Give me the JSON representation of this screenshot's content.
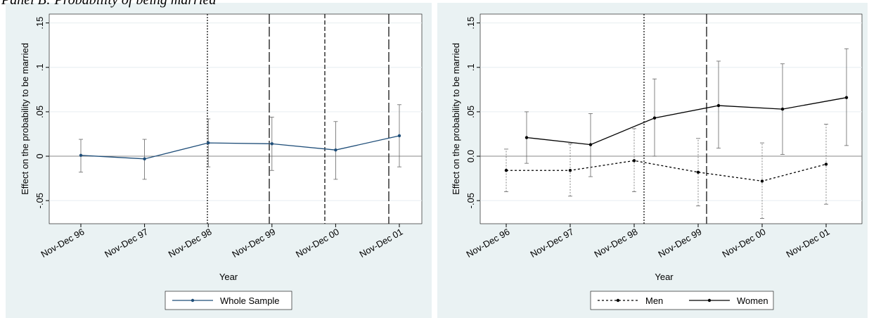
{
  "title": "Panel B: Probability of being married",
  "chart_data": [
    {
      "type": "line",
      "xlabel": "Year",
      "ylabel": "Effect on the probability to be married",
      "categories": [
        "Nov-Dec 96",
        "Nov-Dec 97",
        "Nov-Dec 98",
        "Nov-Dec 99",
        "Nov-Dec 00",
        "Nov-Dec 01"
      ],
      "series": [
        {
          "name": "Whole Sample",
          "color": "#1f4e79",
          "linestyle": "solid",
          "values": [
            0.001,
            -0.003,
            0.015,
            0.014,
            0.007,
            0.023
          ],
          "lower": [
            -0.018,
            -0.026,
            -0.012,
            -0.016,
            -0.026,
            -0.012
          ],
          "upper": [
            0.019,
            0.019,
            0.042,
            0.044,
            0.039,
            0.058
          ]
        }
      ],
      "ylim": [
        -0.076,
        0.16
      ],
      "yticks": [
        {
          "value": -0.05,
          "label": "-.05"
        },
        0,
        {
          "value": 0.05,
          "label": ".05"
        },
        {
          "value": 0.1,
          "label": ".1"
        },
        {
          "value": 0.15,
          "label": ".15"
        }
      ],
      "grid": true
    },
    {
      "type": "line",
      "xlabel": "Year",
      "ylabel": "Effect on the probability to be married",
      "categories": [
        "Nov-Dec 96",
        "Nov-Dec 97",
        "Nov-Dec 98",
        "Nov-Dec 99",
        "Nov-Dec 00",
        "Nov-Dec 01"
      ],
      "series": [
        {
          "name": "Men",
          "color": "#000000",
          "linestyle": "dashed",
          "values": [
            -0.016,
            -0.016,
            -0.005,
            -0.018,
            -0.028,
            -0.009
          ],
          "lower": [
            -0.04,
            -0.045,
            -0.04,
            -0.056,
            -0.07,
            -0.054
          ],
          "upper": [
            0.008,
            0.014,
            0.031,
            0.02,
            0.015,
            0.036
          ]
        },
        {
          "name": "Women",
          "color": "#000000",
          "linestyle": "solid",
          "values": [
            0.021,
            0.013,
            0.043,
            0.057,
            0.053,
            0.066
          ],
          "lower": [
            -0.008,
            -0.023,
            0.0,
            0.009,
            0.002,
            0.012
          ],
          "upper": [
            0.05,
            0.048,
            0.087,
            0.107,
            0.104,
            0.121
          ]
        }
      ],
      "ylim": [
        -0.076,
        0.16
      ],
      "yticks": [
        {
          "value": -0.05,
          "label": "-.05"
        },
        {
          "value": 0,
          "label": "0.0"
        },
        {
          "value": 0.05,
          "label": ".05"
        },
        {
          "value": 0.1,
          "label": ".1"
        },
        {
          "value": 0.15,
          "label": ".15"
        }
      ],
      "grid": true
    }
  ]
}
